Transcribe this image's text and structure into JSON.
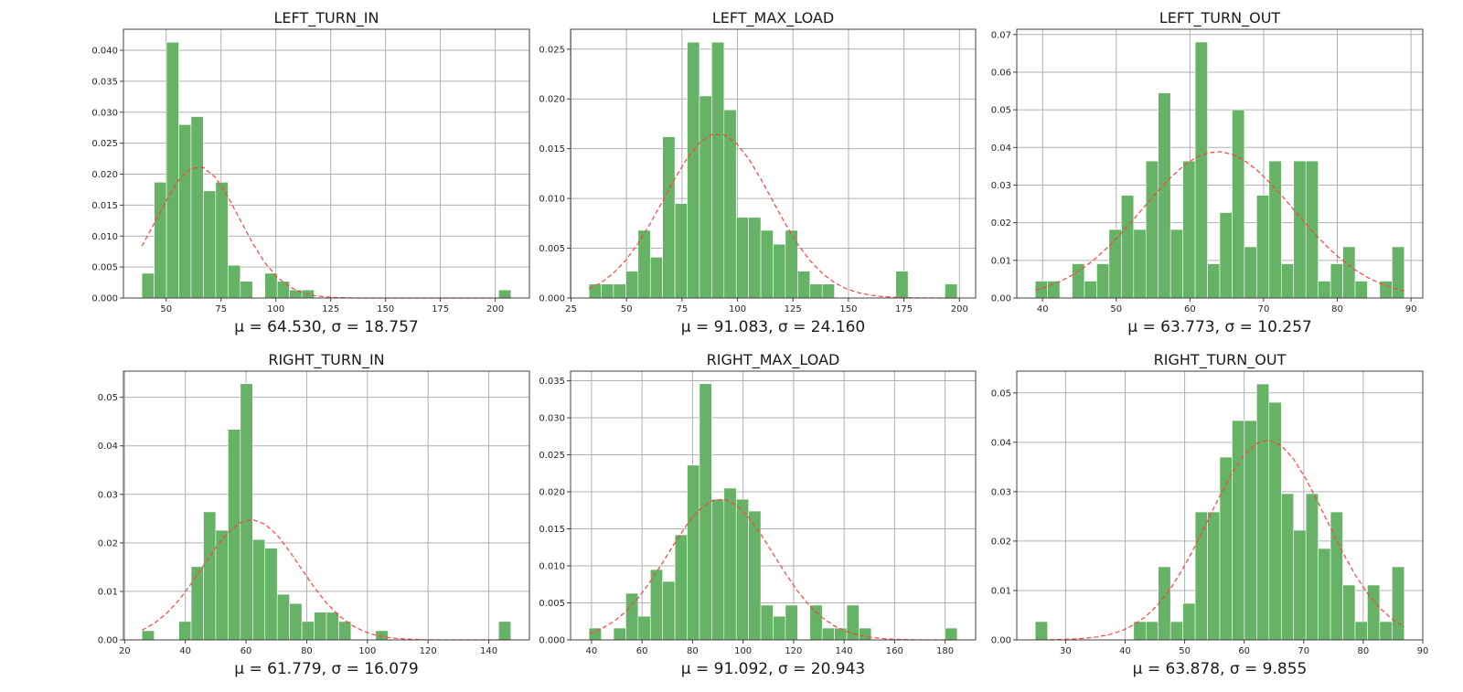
{
  "colors": {
    "bar": "#66b266",
    "fit": "#ff4040",
    "grid": "#b0b0b0"
  },
  "chart_data": [
    {
      "type": "bar",
      "title": "LEFT_TURN_IN",
      "xlabel": "μ = 64.530,  σ = 18.757",
      "mu": 64.53,
      "sigma": 18.757,
      "bin_range": [
        38.9,
        207.2
      ],
      "density": [
        0.004,
        0.0187,
        0.0413,
        0.028,
        0.0293,
        0.0173,
        0.0187,
        0.0053,
        0.0027,
        0,
        0.004,
        0.0027,
        0.0013,
        0.0013,
        0,
        0,
        0,
        0,
        0,
        0,
        0,
        0,
        0,
        0,
        0,
        0,
        0,
        0,
        0,
        0.0013
      ],
      "xlim": [
        30.5,
        215.6
      ],
      "ylim": [
        0,
        0.0434
      ],
      "xticks": [
        50,
        75,
        100,
        125,
        150,
        175,
        200
      ],
      "xtick_labels": [
        "50",
        "75",
        "100",
        "125",
        "150",
        "175",
        "200"
      ],
      "yticks": [
        0,
        0.005,
        0.01,
        0.015,
        0.02,
        0.025,
        0.03,
        0.035,
        0.04
      ],
      "ytick_labels": [
        "0.000",
        "0.005",
        "0.010",
        "0.015",
        "0.020",
        "0.025",
        "0.030",
        "0.035",
        "0.040"
      ],
      "grid": true
    },
    {
      "type": "bar",
      "title": "LEFT_MAX_LOAD",
      "xlabel": "μ = 91.083,  σ = 24.160",
      "mu": 91.083,
      "sigma": 24.16,
      "bin_range": [
        33.1,
        199.0
      ],
      "density": [
        0.0014,
        0.0014,
        0.0014,
        0.0027,
        0.0068,
        0.0041,
        0.0162,
        0.0095,
        0.0257,
        0.0203,
        0.0257,
        0.0189,
        0.0081,
        0.0081,
        0.0068,
        0.0054,
        0.0068,
        0.0027,
        0.0014,
        0.0014,
        0,
        0,
        0,
        0,
        0,
        0.0027,
        0,
        0,
        0,
        0.0014
      ],
      "xlim": [
        24.8,
        207.3
      ],
      "ylim": [
        0,
        0.027
      ],
      "xticks": [
        25,
        50,
        75,
        100,
        125,
        150,
        175,
        200
      ],
      "xtick_labels": [
        "25",
        "50",
        "75",
        "100",
        "125",
        "150",
        "175",
        "200"
      ],
      "yticks": [
        0,
        0.005,
        0.01,
        0.015,
        0.02,
        0.025
      ],
      "ytick_labels": [
        "0.000",
        "0.005",
        "0.010",
        "0.015",
        "0.020",
        "0.025"
      ],
      "grid": true
    },
    {
      "type": "bar",
      "title": "LEFT_TURN_OUT",
      "xlabel": "μ = 63.773,  σ = 10.257",
      "mu": 63.773,
      "sigma": 10.257,
      "bin_range": [
        39.0,
        89.1
      ],
      "density": [
        0.0045,
        0.0045,
        0,
        0.0091,
        0.0045,
        0.0091,
        0.0182,
        0.0273,
        0.0182,
        0.0364,
        0.0545,
        0.0182,
        0.0364,
        0.068,
        0.0091,
        0.0227,
        0.05,
        0.0136,
        0.0273,
        0.0364,
        0.0091,
        0.0364,
        0.0364,
        0.0045,
        0.0091,
        0.0136,
        0.0045,
        0,
        0.0045,
        0.0136
      ],
      "xlim": [
        36.5,
        91.6
      ],
      "ylim": [
        0,
        0.0714
      ],
      "xticks": [
        40,
        50,
        60,
        70,
        80,
        90
      ],
      "xtick_labels": [
        "40",
        "50",
        "60",
        "70",
        "80",
        "90"
      ],
      "yticks": [
        0,
        0.01,
        0.02,
        0.03,
        0.04,
        0.05,
        0.06,
        0.07
      ],
      "ytick_labels": [
        "0.00",
        "0.01",
        "0.02",
        "0.03",
        "0.04",
        "0.05",
        "0.06",
        "0.07"
      ],
      "grid": true
    },
    {
      "type": "bar",
      "title": "RIGHT_TURN_IN",
      "xlabel": "μ = 61.779,  σ = 16.079",
      "mu": 61.779,
      "sigma": 16.079,
      "bin_range": [
        25.7,
        147.3
      ],
      "density": [
        0.0019,
        0,
        0,
        0.0038,
        0.0151,
        0.0264,
        0.0226,
        0.0434,
        0.0528,
        0.0207,
        0.0189,
        0.0094,
        0.0075,
        0.0038,
        0.0057,
        0.0057,
        0.0038,
        0,
        0,
        0.0019,
        0,
        0,
        0,
        0,
        0,
        0,
        0,
        0,
        0,
        0.0038
      ],
      "xlim": [
        19.6,
        153.4
      ],
      "ylim": [
        0,
        0.0554
      ],
      "xticks": [
        20,
        40,
        60,
        80,
        100,
        120,
        140
      ],
      "xtick_labels": [
        "20",
        "40",
        "60",
        "80",
        "100",
        "120",
        "140"
      ],
      "yticks": [
        0,
        0.01,
        0.02,
        0.03,
        0.04,
        0.05
      ],
      "ytick_labels": [
        "0.00",
        "0.01",
        "0.02",
        "0.03",
        "0.04",
        "0.05"
      ],
      "grid": true
    },
    {
      "type": "bar",
      "title": "RIGHT_MAX_LOAD",
      "xlabel": "μ = 91.092,  σ = 20.943",
      "mu": 91.092,
      "sigma": 20.943,
      "bin_range": [
        39.0,
        184.8
      ],
      "density": [
        0.0016,
        0,
        0.0016,
        0.0063,
        0.0032,
        0.0095,
        0.0079,
        0.0142,
        0.0236,
        0.0346,
        0.019,
        0.0205,
        0.019,
        0.0174,
        0.0047,
        0.0032,
        0.0047,
        0,
        0.0047,
        0.0016,
        0.0016,
        0.0047,
        0.0016,
        0,
        0,
        0,
        0,
        0,
        0,
        0.0016
      ],
      "xlim": [
        31.7,
        192.1
      ],
      "ylim": [
        0,
        0.0363
      ],
      "xticks": [
        40,
        60,
        80,
        100,
        120,
        140,
        160,
        180
      ],
      "xtick_labels": [
        "40",
        "60",
        "80",
        "100",
        "120",
        "140",
        "160",
        "180"
      ],
      "yticks": [
        0,
        0.005,
        0.01,
        0.015,
        0.02,
        0.025,
        0.03,
        0.035
      ],
      "ytick_labels": [
        "0.000",
        "0.005",
        "0.010",
        "0.015",
        "0.020",
        "0.025",
        "0.030",
        "0.035"
      ],
      "grid": true
    },
    {
      "type": "bar",
      "title": "RIGHT_TURN_OUT",
      "xlabel": "μ = 63.878,  σ = 9.855",
      "mu": 63.878,
      "sigma": 9.855,
      "bin_range": [
        24.9,
        86.9
      ],
      "density": [
        0.0037,
        0,
        0,
        0,
        0,
        0,
        0,
        0,
        0.0037,
        0.0037,
        0.0148,
        0.0037,
        0.0074,
        0.0259,
        0.0259,
        0.037,
        0.0444,
        0.0444,
        0.0518,
        0.0481,
        0.0296,
        0.0222,
        0.0296,
        0.0185,
        0.0259,
        0.0111,
        0.0037,
        0.0111,
        0.0037,
        0.0148
      ],
      "xlim": [
        21.8,
        90.0
      ],
      "ylim": [
        0,
        0.0544
      ],
      "xticks": [
        30,
        40,
        50,
        60,
        70,
        80,
        90
      ],
      "xtick_labels": [
        "30",
        "40",
        "50",
        "60",
        "70",
        "80",
        "90"
      ],
      "yticks": [
        0,
        0.01,
        0.02,
        0.03,
        0.04,
        0.05
      ],
      "ytick_labels": [
        "0.00",
        "0.01",
        "0.02",
        "0.03",
        "0.04",
        "0.05"
      ],
      "grid": true
    }
  ]
}
